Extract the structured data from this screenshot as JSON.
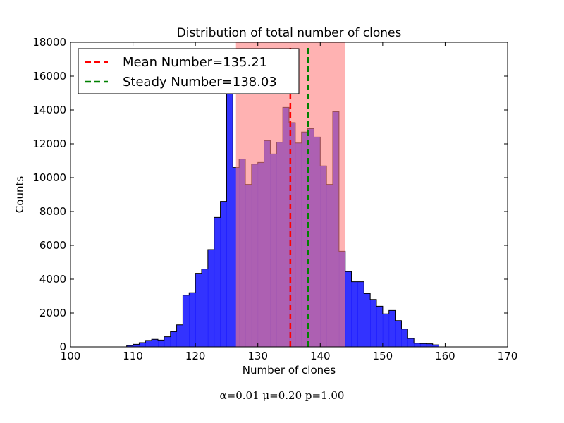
{
  "chart_data": {
    "type": "bar",
    "title": "Distribution of total number of clones",
    "xlabel": "Number of clones",
    "ylabel": "Counts",
    "xlim": [
      100,
      170
    ],
    "ylim": [
      0,
      18000
    ],
    "xticks": [
      "100",
      "110",
      "120",
      "130",
      "140",
      "150",
      "160",
      "170"
    ],
    "yticks": [
      "0",
      "2000",
      "4000",
      "6000",
      "8000",
      "10000",
      "12000",
      "14000",
      "16000",
      "18000"
    ],
    "grid": false,
    "legend_position": "top-left",
    "bin_width": 1,
    "bin_start": 108,
    "counts": [
      0,
      80,
      150,
      250,
      380,
      450,
      400,
      600,
      900,
      1300,
      3050,
      3200,
      4350,
      4600,
      5750,
      7650,
      8600,
      15600,
      10600,
      11100,
      9600,
      10800,
      10900,
      12200,
      11400,
      12100,
      14150,
      13250,
      12050,
      12700,
      12900,
      12400,
      10700,
      9600,
      13900,
      5650,
      4450,
      3850,
      3850,
      3150,
      2800,
      2400,
      1950,
      2150,
      1550,
      1050,
      500,
      220,
      200,
      180,
      120
    ],
    "bar_color": "#0000ff",
    "highlight_span": [
      126.5,
      144
    ],
    "highlight_color": "#ff7f7f",
    "vlines": [
      {
        "label": "Mean Number=135.21",
        "x": 135.21,
        "color": "#ff0000",
        "style": "dashed"
      },
      {
        "label": "Steady Number=138.03",
        "x": 138.03,
        "color": "#008000",
        "style": "dashed"
      }
    ],
    "caption": "α=0.01 μ=0.20 p=1.00"
  }
}
